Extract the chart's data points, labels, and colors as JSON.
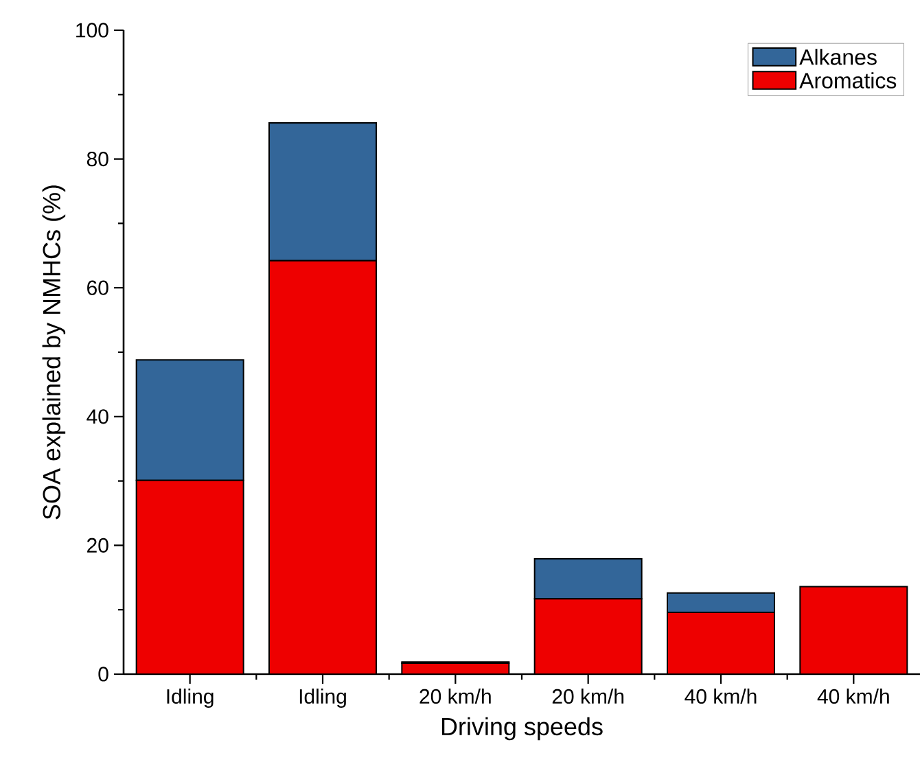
{
  "chart_data": {
    "type": "bar",
    "stacked": true,
    "xlabel": "Driving speeds",
    "ylabel": "SOA explained by NMHCs (%)",
    "categories": [
      "Idling",
      "Idling",
      "20 km/h",
      "20 km/h",
      "40 km/h",
      "40 km/h"
    ],
    "series": [
      {
        "name": "Aromatics",
        "color": "#ee0000",
        "values": [
          30.1,
          64.2,
          1.7,
          11.7,
          9.6,
          13.6
        ]
      },
      {
        "name": "Alkanes",
        "color": "#336699",
        "values": [
          18.7,
          21.4,
          0.2,
          6.2,
          3.0,
          null
        ]
      }
    ],
    "ylim": [
      0,
      100
    ],
    "yticks": [
      0,
      20,
      40,
      60,
      80,
      100
    ],
    "grid": false,
    "legend": "top right"
  }
}
